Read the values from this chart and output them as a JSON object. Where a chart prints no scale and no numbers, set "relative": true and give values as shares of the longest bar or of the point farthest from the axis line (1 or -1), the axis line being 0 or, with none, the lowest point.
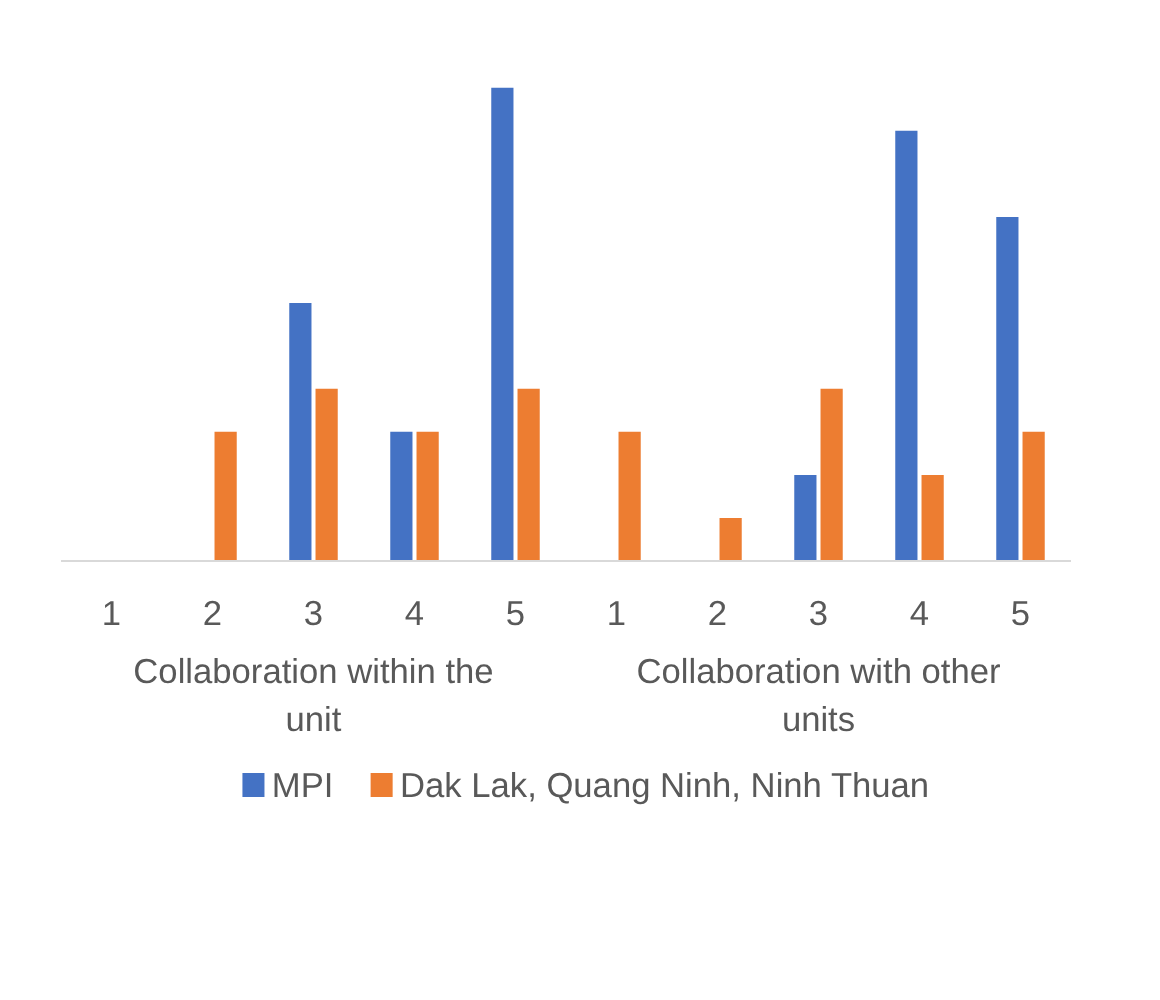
{
  "chart_data": {
    "type": "bar",
    "relative": true,
    "categories": [
      "1",
      "2",
      "3",
      "4",
      "5",
      "1",
      "2",
      "3",
      "4",
      "5"
    ],
    "annotations": [
      "Collaboration within the unit",
      "Collaboration with other units"
    ],
    "series": [
      {
        "name": "MPI",
        "color": "#4472c4",
        "values": [
          0,
          0,
          0.545,
          0.273,
          1,
          0,
          0,
          0.182,
          0.909,
          0.727
        ]
      },
      {
        "name": "Dak Lak, Quang Ninh, Ninh Thuan",
        "color": "#ed7d31",
        "values": [
          0,
          0.273,
          0.364,
          0.273,
          0.364,
          0.273,
          0.091,
          0.364,
          0.182,
          0.273
        ]
      }
    ],
    "legend": "bottom"
  }
}
